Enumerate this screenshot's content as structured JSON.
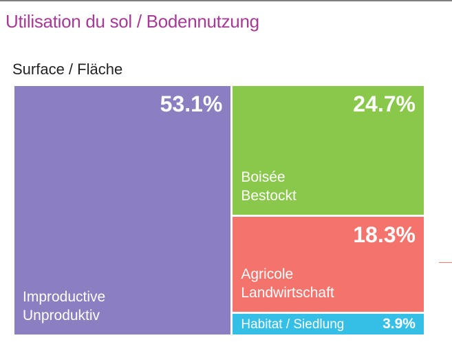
{
  "title": "Utilisation du sol / Bodennutzung",
  "subtitle": "Surface / Fläche",
  "chart_data": {
    "type": "treemap",
    "title": "Utilisation du sol / Bodennutzung",
    "subtitle": "Surface / Fläche",
    "items": [
      {
        "label_lines": [
          "Improductive",
          "Unproduktiv"
        ],
        "value": 53.1,
        "value_label": "53.1%",
        "color": "#8b7fc1"
      },
      {
        "label_lines": [
          "Boisée",
          "Bestockt"
        ],
        "value": 24.7,
        "value_label": "24.7%",
        "color": "#8ac84b"
      },
      {
        "label_lines": [
          "Agricole",
          "Landwirtschaft"
        ],
        "value": 18.3,
        "value_label": "18.3%",
        "color": "#f4736c"
      },
      {
        "label_lines": [
          "Habitat / Siedlung"
        ],
        "value": 3.9,
        "value_label": "3.9%",
        "color": "#35bfe7"
      }
    ]
  }
}
